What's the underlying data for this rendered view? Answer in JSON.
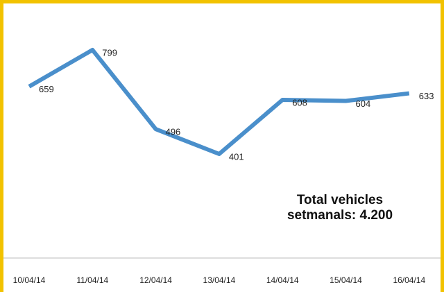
{
  "chart_data": {
    "type": "line",
    "categories": [
      "10/04/14",
      "11/04/14",
      "12/04/14",
      "13/04/14",
      "14/04/14",
      "15/04/14",
      "16/04/14"
    ],
    "values": [
      659,
      799,
      496,
      401,
      608,
      604,
      633
    ],
    "color": "#4a8fcb",
    "annotation": [
      "Total vehicles",
      "setmanals: 4.200"
    ]
  }
}
